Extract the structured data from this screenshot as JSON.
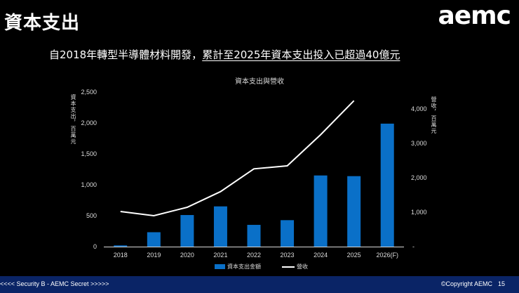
{
  "slide": {
    "title": "資本支出",
    "logo": "aemc",
    "subtitle_part1": "自2018年轉型半導體材料開發，",
    "subtitle_part2": "累計至2025年資本支出投入已超過40億元"
  },
  "chart": {
    "title": "資本支出與營收",
    "left_axis_label": "資本支出，百萬元",
    "right_axis_label": "營收，百萬元",
    "left_ticks": [
      "2,500",
      "2,000",
      "1,500",
      "1,000",
      "500",
      "0"
    ],
    "right_ticks": [
      "4,000",
      "3,000",
      "2,000",
      "1,000",
      "-"
    ],
    "categories": [
      "2018",
      "2019",
      "2020",
      "2021",
      "2022",
      "2023",
      "2024",
      "2025",
      "2026(F)"
    ],
    "legend": {
      "bar": "資本支出金額",
      "line": "營收"
    },
    "bar_color": "#0a70c8",
    "line_color": "#ffffff"
  },
  "chart_data": {
    "type": "bar",
    "title": "資本支出與營收",
    "categories": [
      "2018",
      "2019",
      "2020",
      "2021",
      "2022",
      "2023",
      "2024",
      "2025",
      "2026(F)"
    ],
    "series": [
      {
        "name": "資本支出金額",
        "type": "bar",
        "axis": "left",
        "values": [
          20,
          233,
          511,
          651,
          352,
          428,
          1151,
          1140,
          1989
        ]
      },
      {
        "name": "營收",
        "type": "line",
        "axis": "right",
        "values": [
          1020,
          898,
          1143,
          1598,
          2259,
          2347,
          3250,
          4238,
          null
        ]
      }
    ],
    "xlabel": "",
    "ylabel": "資本支出，百萬元",
    "y2label": "營收，百萬元",
    "ylim": [
      0,
      2500
    ],
    "y2lim": [
      0,
      4500
    ],
    "legend_position": "bottom",
    "grid": false
  },
  "footer": {
    "security": "<<<< Security B - AEMC Secret >>>>>",
    "copyright": "©Copyright AEMC",
    "page": "15"
  }
}
